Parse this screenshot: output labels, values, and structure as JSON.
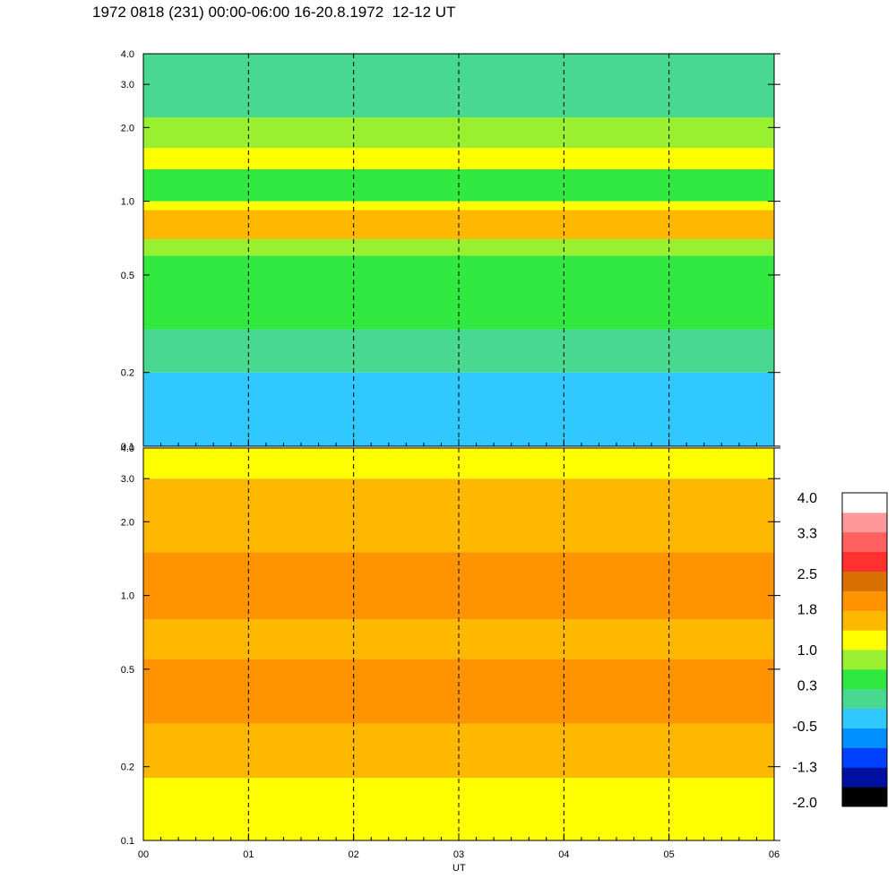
{
  "title": "1972 0818 (231) 00:00-06:00 16-20.8.1972  12-12 UT",
  "xlabel": "UT",
  "colors": {
    "scale": [
      "#000000",
      "#0010a0",
      "#0040ff",
      "#0090ff",
      "#30c8ff",
      "#48d890",
      "#30e840",
      "#98f030",
      "#ffff00",
      "#ffb800",
      "#ff9400",
      "#d87000",
      "#ff3030",
      "#ff6060",
      "#ff9898",
      "#ffffff"
    ],
    "dash": "#000000"
  },
  "chart_data": {
    "type": "heatmap",
    "title": "1972 0818 (231) 00:00-06:00 16-20.8.1972  12-12 UT",
    "xlabel": "UT",
    "ylabel": "",
    "xlim": [
      0,
      6
    ],
    "x_ticks": [
      "00",
      "01",
      "02",
      "03",
      "04",
      "05",
      "06"
    ],
    "hour_marks": [
      1,
      2,
      3,
      4,
      5
    ],
    "panels": [
      {
        "name": "upper",
        "ylim": [
          0.1,
          4.0
        ],
        "y_scale": "log",
        "y_ticks": [
          "0.1",
          "0.2",
          "0.5",
          "1.0",
          "2.0",
          "3.0",
          "4.0"
        ],
        "y_values": [
          0.1,
          0.2,
          0.5,
          1.0,
          2.0,
          3.0,
          4.0
        ],
        "bands": [
          {
            "y0": 0.1,
            "y1": 0.2,
            "color": "#30c8ff"
          },
          {
            "y0": 0.2,
            "y1": 0.3,
            "color": "#48d890"
          },
          {
            "y0": 0.3,
            "y1": 0.6,
            "color": "#30e840"
          },
          {
            "y0": 0.6,
            "y1": 0.7,
            "color": "#98f030"
          },
          {
            "y0": 0.7,
            "y1": 0.92,
            "color": "#ffb800"
          },
          {
            "y0": 0.92,
            "y1": 1.0,
            "color": "#ffff00"
          },
          {
            "y0": 1.0,
            "y1": 1.35,
            "color": "#30e840"
          },
          {
            "y0": 1.35,
            "y1": 1.65,
            "color": "#ffff00"
          },
          {
            "y0": 1.65,
            "y1": 2.2,
            "color": "#98f030"
          },
          {
            "y0": 2.2,
            "y1": 4.0,
            "color": "#48d890"
          }
        ]
      },
      {
        "name": "lower",
        "ylim": [
          0.1,
          4.0
        ],
        "y_scale": "log",
        "y_ticks": [
          "0.1",
          "0.2",
          "0.5",
          "1.0",
          "2.0",
          "3.0",
          "4.0"
        ],
        "y_values": [
          0.1,
          0.2,
          0.5,
          1.0,
          2.0,
          3.0,
          4.0
        ],
        "bands": [
          {
            "y0": 0.1,
            "y1": 0.18,
            "color": "#ffff00"
          },
          {
            "y0": 0.18,
            "y1": 0.3,
            "color": "#ffb800"
          },
          {
            "y0": 0.3,
            "y1": 0.55,
            "color": "#ff9400"
          },
          {
            "y0": 0.55,
            "y1": 0.8,
            "color": "#ffb800"
          },
          {
            "y0": 0.8,
            "y1": 1.5,
            "color": "#ff9400"
          },
          {
            "y0": 1.5,
            "y1": 3.0,
            "color": "#ffb800"
          },
          {
            "y0": 3.0,
            "y1": 4.0,
            "color": "#ffff00"
          }
        ]
      }
    ],
    "colorbar": {
      "labels": [
        "4.0",
        "3.3",
        "2.5",
        "1.8",
        "1.0",
        "0.3",
        "-0.5",
        "-1.3",
        "-2.0"
      ],
      "range": [
        -2.0,
        4.0
      ]
    }
  }
}
